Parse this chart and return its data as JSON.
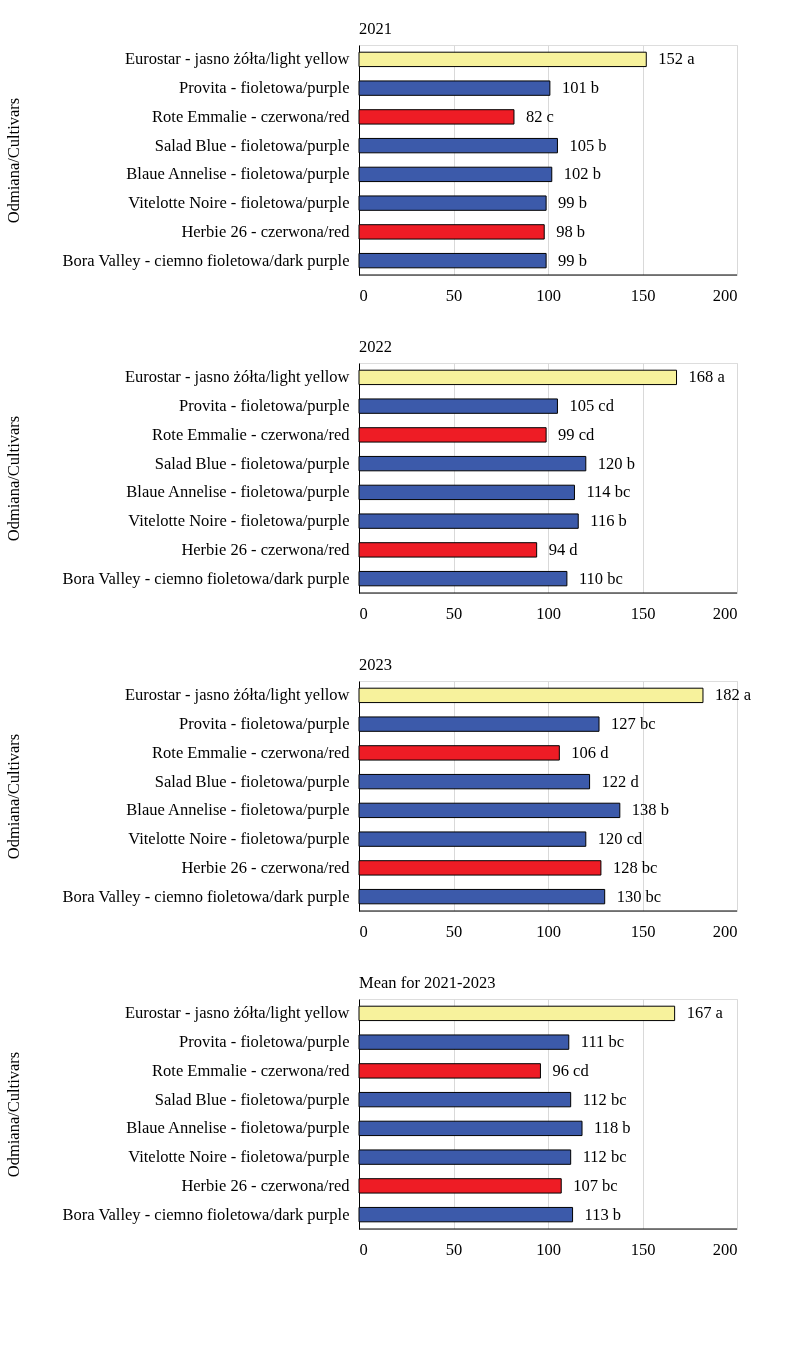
{
  "chart_data": [
    {
      "type": "bar",
      "orientation": "horizontal",
      "title": "2021",
      "ylabel": "Odmiana/Cultivars",
      "categories": [
        "Eurostar - jasno żółta/light yellow",
        "Provita - fioletowa/purple",
        "Rote Emmalie - czerwona/red",
        "Salad Blue - fioletowa/purple",
        "Blaue Annelise - fioletowa/purple",
        "Vitelotte Noire - fioletowa/purple",
        "Herbie 26 - czerwona/red",
        "Bora Valley - ciemno fioletowa/dark purple"
      ],
      "values": [
        152,
        101,
        82,
        105,
        102,
        99,
        98,
        99
      ],
      "value_labels": [
        "152 a",
        "101 b",
        "82 c",
        "105 b",
        "102 b",
        "99 b",
        "98 b",
        "99 b"
      ],
      "colors": [
        "#f7f29c",
        "#3c5aaa",
        "#ee1c25",
        "#3c5aaa",
        "#3c5aaa",
        "#3c5aaa",
        "#ee1c25",
        "#3c5aaa"
      ],
      "xlim": [
        0,
        200
      ],
      "xticks": [
        0,
        50,
        100,
        150,
        200
      ],
      "grid": "x"
    },
    {
      "type": "bar",
      "orientation": "horizontal",
      "title": "2022",
      "ylabel": "Odmiana/Cultivars",
      "categories": [
        "Eurostar - jasno żółta/light yellow",
        "Provita - fioletowa/purple",
        "Rote Emmalie - czerwona/red",
        "Salad Blue - fioletowa/purple",
        "Blaue Annelise - fioletowa/purple",
        "Vitelotte Noire - fioletowa/purple",
        "Herbie 26 - czerwona/red",
        "Bora Valley - ciemno fioletowa/dark purple"
      ],
      "values": [
        168,
        105,
        99,
        120,
        114,
        116,
        94,
        110
      ],
      "value_labels": [
        "168 a",
        "105 cd",
        "99 cd",
        "120 b",
        "114 bc",
        "116 b",
        "94 d",
        "110 bc"
      ],
      "colors": [
        "#f7f29c",
        "#3c5aaa",
        "#ee1c25",
        "#3c5aaa",
        "#3c5aaa",
        "#3c5aaa",
        "#ee1c25",
        "#3c5aaa"
      ],
      "xlim": [
        0,
        200
      ],
      "xticks": [
        0,
        50,
        100,
        150,
        200
      ],
      "grid": "x"
    },
    {
      "type": "bar",
      "orientation": "horizontal",
      "title": "2023",
      "ylabel": "Odmiana/Cultivars",
      "categories": [
        "Eurostar - jasno żółta/light yellow",
        "Provita - fioletowa/purple",
        "Rote Emmalie - czerwona/red",
        "Salad Blue - fioletowa/purple",
        "Blaue Annelise - fioletowa/purple",
        "Vitelotte Noire - fioletowa/purple",
        "Herbie 26 - czerwona/red",
        "Bora Valley - ciemno fioletowa/dark purple"
      ],
      "values": [
        182,
        127,
        106,
        122,
        138,
        120,
        128,
        130
      ],
      "value_labels": [
        "182 a",
        "127 bc",
        "106 d",
        "122 d",
        "138 b",
        "120 cd",
        "128 bc",
        "130 bc"
      ],
      "colors": [
        "#f7f29c",
        "#3c5aaa",
        "#ee1c25",
        "#3c5aaa",
        "#3c5aaa",
        "#3c5aaa",
        "#ee1c25",
        "#3c5aaa"
      ],
      "xlim": [
        0,
        200
      ],
      "xticks": [
        0,
        50,
        100,
        150,
        200
      ],
      "grid": "x"
    },
    {
      "type": "bar",
      "orientation": "horizontal",
      "title": "Mean for 2021-2023",
      "ylabel": "Odmiana/Cultivars",
      "categories": [
        "Eurostar - jasno żółta/light yellow",
        "Provita - fioletowa/purple",
        "Rote Emmalie - czerwona/red",
        "Salad Blue - fioletowa/purple",
        "Blaue Annelise - fioletowa/purple",
        "Vitelotte Noire - fioletowa/purple",
        "Herbie 26 - czerwona/red",
        "Bora Valley - ciemno fioletowa/dark purple"
      ],
      "values": [
        167,
        111,
        96,
        112,
        118,
        112,
        107,
        113
      ],
      "value_labels": [
        "167 a",
        "111 bc",
        "96 cd",
        "112 bc",
        "118 b",
        "112 bc",
        "107 bc",
        "113 b"
      ],
      "colors": [
        "#f7f29c",
        "#3c5aaa",
        "#ee1c25",
        "#3c5aaa",
        "#3c5aaa",
        "#3c5aaa",
        "#ee1c25",
        "#3c5aaa"
      ],
      "xlim": [
        0,
        200
      ],
      "xticks": [
        0,
        50,
        100,
        150,
        200
      ],
      "grid": "x"
    }
  ]
}
